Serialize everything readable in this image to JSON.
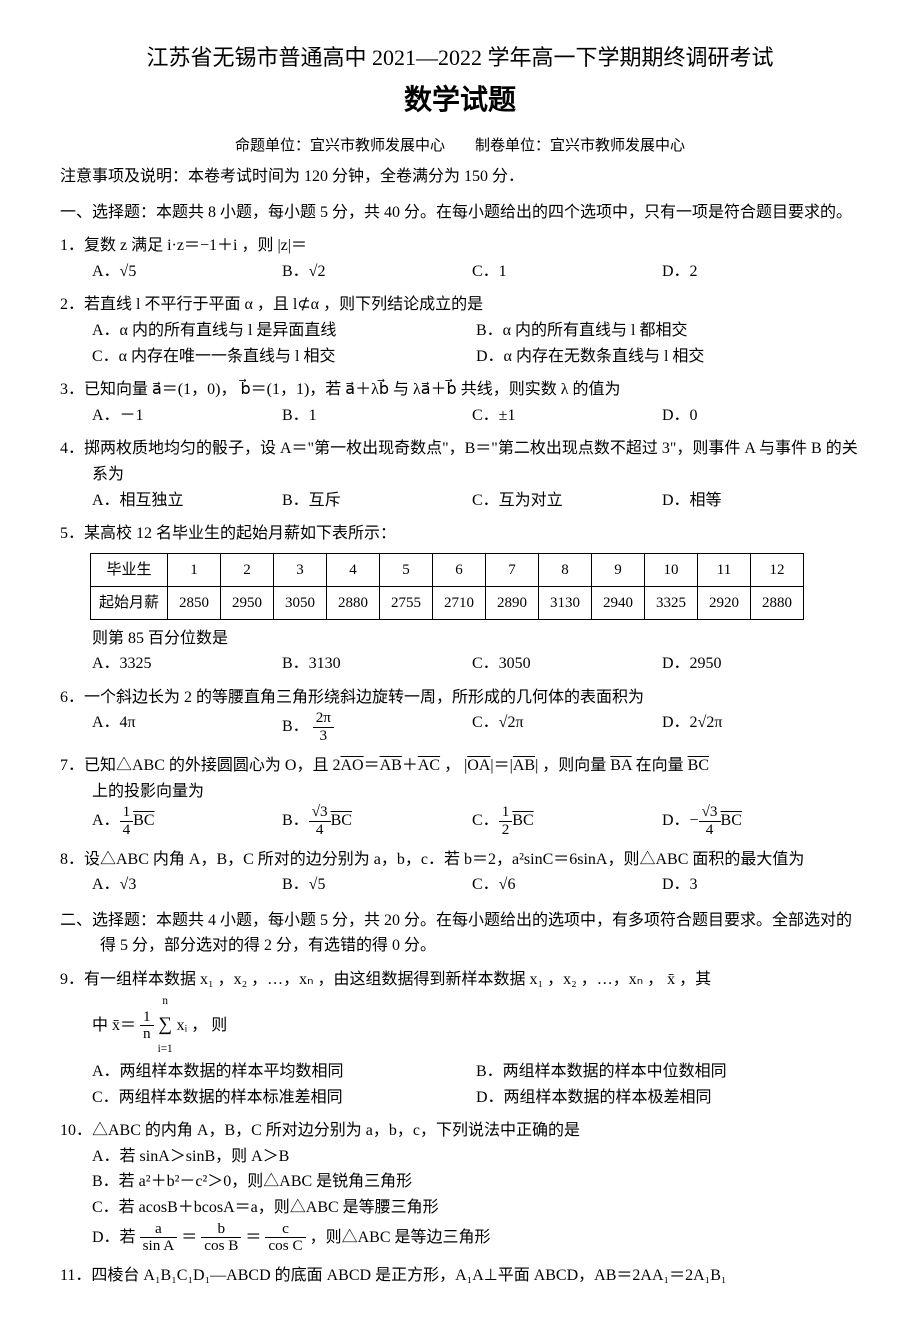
{
  "header": {
    "main_title": "江苏省无锡市普通高中 2021—2022 学年高一下学期期终调研考试",
    "sub_title": "数学试题",
    "meta_left": "命题单位：宜兴市教师发展中心",
    "meta_right": "制卷单位：宜兴市教师发展中心",
    "note": "注意事项及说明：本卷考试时间为 120 分钟，全卷满分为 150 分．"
  },
  "section1": {
    "heading": "一、选择题：本题共 8 小题，每小题 5 分，共 40 分。在每小题给出的四个选项中，只有一项是符合题目要求的。"
  },
  "q1": {
    "stem_pre": "1．复数 z 满足 i·z＝−1＋i ，则 |z|＝",
    "A": "A．√5",
    "B": "B．√2",
    "C": "C．1",
    "D": "D．2"
  },
  "q2": {
    "stem": "2．若直线 l 不平行于平面 α ，且 l⊄α ，则下列结论成立的是",
    "A": "A．α 内的所有直线与 l 是异面直线",
    "B": "B．α 内的所有直线与 l 都相交",
    "C": "C．α 内存在唯一一条直线与 l 相交",
    "D": "D．α 内存在无数条直线与 l 相交"
  },
  "q3": {
    "stem": "3．已知向量 a⃗＝(1，0)， b⃗＝(1，1)，若 a⃗＋λb⃗ 与 λa⃗＋b⃗ 共线，则实数 λ 的值为",
    "A": "A．－1",
    "B": "B．1",
    "C": "C．±1",
    "D": "D．0"
  },
  "q4": {
    "stem": "4．掷两枚质地均匀的骰子，设 A＝\"第一枚出现奇数点\"，B＝\"第二枚出现点数不超过 3\"，则事件 A 与事件 B 的关系为",
    "A": "A．相互独立",
    "B": "B．互斥",
    "C": "C．互为对立",
    "D": "D．相等"
  },
  "q5": {
    "stem": "5．某高校 12 名毕业生的起始月薪如下表所示：",
    "table_header_label": "毕业生",
    "table_row2_label": "起始月薪",
    "cols": [
      "1",
      "2",
      "3",
      "4",
      "5",
      "6",
      "7",
      "8",
      "9",
      "10",
      "11",
      "12"
    ],
    "vals": [
      "2850",
      "2950",
      "3050",
      "2880",
      "2755",
      "2710",
      "2890",
      "3130",
      "2940",
      "3325",
      "2920",
      "2880"
    ],
    "after": "则第 85 百分位数是",
    "A": "A．3325",
    "B": "B．3130",
    "C": "C．3050",
    "D": "D．2950"
  },
  "q6": {
    "stem": "6．一个斜边长为 2 的等腰直角三角形绕斜边旋转一周，所形成的几何体的表面积为",
    "A": "A．4π",
    "B_num": "2π",
    "B_den": "3",
    "B_pre": "B．",
    "C": "C．√2π",
    "D": "D．2√2π"
  },
  "q7": {
    "stem_pre": "7．已知△ABC 的外接圆圆心为 O，且 2",
    "AO": "AO",
    "eq": "＝",
    "AB": "AB",
    "plus": "＋",
    "AC": "AC",
    "mid": " ， |",
    "OA": "OA",
    "mid2": "|＝|",
    "AB2": "AB",
    "mid3": "| ，则向量 ",
    "BA": "BA",
    "tail": " 在向量 ",
    "BC": "BC",
    "stem_line2": "上的投影向量为",
    "A_pre": "A．",
    "A_num": "1",
    "A_den": "4",
    "A_vec": "BC",
    "B_pre": "B．",
    "B_num": "√3",
    "B_den": "4",
    "B_vec": "BC",
    "C_pre": "C．",
    "C_num": "1",
    "C_den": "2",
    "C_vec": "BC",
    "D_pre": "D．−",
    "D_num": "√3",
    "D_den": "4",
    "D_vec": "BC"
  },
  "q8": {
    "stem": "8．设△ABC 内角 A，B，C 所对的边分别为 a，b，c．若 b＝2，a²sinC＝6sinA，则△ABC 面积的最大值为",
    "A": "A．√3",
    "B": "B．√5",
    "C": "C．√6",
    "D": "D．3"
  },
  "section2": {
    "heading": "二、选择题：本题共 4 小题，每小题 5 分，共 20 分。在每小题给出的选项中，有多项符合题目要求。全部选对的得 5 分，部分选对的得 2 分，有选错的得 0 分。"
  },
  "q9": {
    "stem_a": "9．有一组样本数据 x₁ ，x₂ ，…，xₙ ，由这组数据得到新样本数据 x₁ ，x₂ ，…，xₙ ， x̄ ，其",
    "stem_b_pre": "中 x̄＝",
    "frac_num": "1",
    "frac_den": "n",
    "sum_bounds_top": "n",
    "sum_bounds_bot": "i=1",
    "stem_b_post": " xᵢ ， 则",
    "A": "A．两组样本数据的样本平均数相同",
    "B": "B．两组样本数据的样本中位数相同",
    "C": "C．两组样本数据的样本标准差相同",
    "D": "D．两组样本数据的样本极差相同"
  },
  "q10": {
    "stem": "10．△ABC 的内角 A，B，C 所对边分别为 a，b，c，下列说法中正确的是",
    "A": "A．若 sinA＞sinB，则 A＞B",
    "B": "B．若 a²＋b²－c²＞0，则△ABC 是锐角三角形",
    "C": "C．若 acosB＋bcosA＝a，则△ABC 是等腰三角形",
    "D_pre": "D．若 ",
    "fa_num": "a",
    "fa_den": "sin A",
    "eq1": "＝",
    "fb_num": "b",
    "fb_den": "cos B",
    "eq2": "＝",
    "fc_num": "c",
    "fc_den": "cos C",
    "D_post": " ，则△ABC 是等边三角形"
  },
  "q11": {
    "stem": "11．四棱台 A₁B₁C₁D₁—ABCD 的底面 ABCD 是正方形，A₁A⊥平面 ABCD，AB＝2AA₁＝2A₁B₁"
  }
}
